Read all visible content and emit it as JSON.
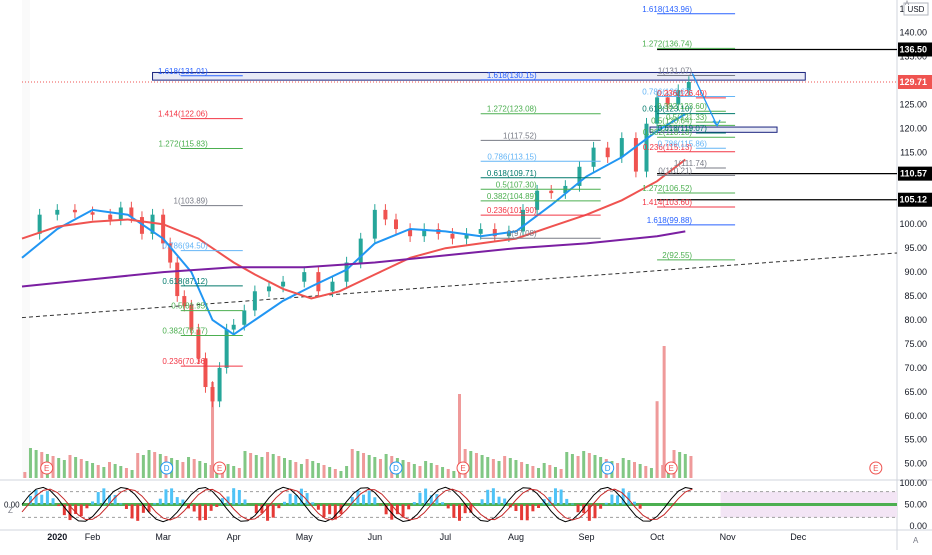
{
  "currency": "USD",
  "chart_data": {
    "type": "candlestick",
    "title": "",
    "price_axis": {
      "ticks": [
        "145.00",
        "140.00",
        "135.00",
        "130.00",
        "125.00",
        "120.00",
        "115.00",
        "110.00",
        "105.00",
        "100.00",
        "95.00",
        "90.00",
        "85.00",
        "80.00",
        "75.00",
        "70.00",
        "65.00",
        "60.00",
        "55.00",
        "50.00"
      ],
      "ylim": [
        47,
        146
      ]
    },
    "oscillator_axis": {
      "ticks": [
        "100.00",
        "50.00",
        "0.00"
      ],
      "left_label": "0.00",
      "ylim": [
        0,
        100
      ]
    },
    "time_axis": {
      "ticks": [
        {
          "label": "2020",
          "t": 0.5
        },
        {
          "label": "Feb",
          "t": 1.0
        },
        {
          "label": "Mar",
          "t": 2.0
        },
        {
          "label": "Apr",
          "t": 3.0
        },
        {
          "label": "May",
          "t": 4.0
        },
        {
          "label": "Jun",
          "t": 5.0
        },
        {
          "label": "Jul",
          "t": 6.0
        },
        {
          "label": "Aug",
          "t": 7.0
        },
        {
          "label": "Sep",
          "t": 8.0
        },
        {
          "label": "Oct",
          "t": 9.0
        },
        {
          "label": "Nov",
          "t": 10.0
        },
        {
          "label": "Dec",
          "t": 11.0
        }
      ],
      "xlim": [
        0,
        12.4
      ]
    },
    "price_tags": [
      {
        "label": "136.50",
        "value": 136.5,
        "color": "#000000"
      },
      {
        "label": "129.71",
        "value": 129.71,
        "color": "#ef5350"
      },
      {
        "label": "110.57",
        "value": 110.57,
        "color": "#000000"
      },
      {
        "label": "105.12",
        "value": 105.12,
        "color": "#000000"
      }
    ],
    "close_series": [
      [
        0.0,
        98.0
      ],
      [
        0.25,
        102.0
      ],
      [
        0.5,
        103.0
      ],
      [
        0.75,
        102.5
      ],
      [
        1.0,
        102.0
      ],
      [
        1.25,
        101.0
      ],
      [
        1.4,
        103.5
      ],
      [
        1.55,
        101.5
      ],
      [
        1.7,
        98.0
      ],
      [
        1.85,
        102.0
      ],
      [
        2.0,
        96.0
      ],
      [
        2.1,
        92.0
      ],
      [
        2.2,
        85.0
      ],
      [
        2.3,
        83.0
      ],
      [
        2.4,
        78.0
      ],
      [
        2.5,
        72.0
      ],
      [
        2.6,
        66.0
      ],
      [
        2.7,
        63.0
      ],
      [
        2.8,
        70.0
      ],
      [
        2.9,
        78.0
      ],
      [
        3.0,
        79.0
      ],
      [
        3.15,
        82.0
      ],
      [
        3.3,
        86.0
      ],
      [
        3.5,
        87.0
      ],
      [
        3.7,
        88.0
      ],
      [
        4.0,
        90.0
      ],
      [
        4.2,
        86.0
      ],
      [
        4.4,
        88.0
      ],
      [
        4.6,
        92.0
      ],
      [
        4.8,
        97.0
      ],
      [
        5.0,
        103.0
      ],
      [
        5.15,
        101.0
      ],
      [
        5.3,
        99.0
      ],
      [
        5.5,
        97.5
      ],
      [
        5.7,
        99.0
      ],
      [
        5.9,
        98.0
      ],
      [
        6.1,
        97.0
      ],
      [
        6.3,
        98.0
      ],
      [
        6.5,
        99.0
      ],
      [
        6.7,
        97.5
      ],
      [
        6.9,
        98.5
      ],
      [
        7.1,
        103.0
      ],
      [
        7.3,
        107.0
      ],
      [
        7.5,
        106.5
      ],
      [
        7.7,
        108.0
      ],
      [
        7.9,
        112.0
      ],
      [
        8.1,
        116.0
      ],
      [
        8.3,
        114.0
      ],
      [
        8.5,
        118.0
      ],
      [
        8.7,
        111.0
      ],
      [
        8.85,
        121.0
      ],
      [
        9.0,
        126.5
      ],
      [
        9.15,
        125.0
      ],
      [
        9.3,
        128.0
      ],
      [
        9.45,
        129.71
      ]
    ],
    "moving_averages": [
      {
        "color": "#2196f3",
        "points": [
          [
            0.0,
            93.0
          ],
          [
            0.5,
            99.0
          ],
          [
            1.0,
            103.0
          ],
          [
            1.5,
            102.0
          ],
          [
            2.0,
            97.0
          ],
          [
            2.4,
            90.0
          ],
          [
            2.7,
            80.0
          ],
          [
            3.0,
            77.0
          ],
          [
            3.3,
            80.0
          ],
          [
            3.7,
            84.0
          ],
          [
            4.1,
            87.0
          ],
          [
            4.6,
            90.5
          ],
          [
            5.0,
            96.0
          ],
          [
            5.5,
            99.0
          ],
          [
            6.0,
            98.5
          ],
          [
            6.5,
            97.5
          ],
          [
            7.0,
            98.5
          ],
          [
            7.5,
            104.0
          ],
          [
            8.0,
            110.0
          ],
          [
            8.5,
            114.0
          ],
          [
            9.0,
            119.5
          ],
          [
            9.4,
            123.0
          ]
        ]
      },
      {
        "color": "#ef5350",
        "points": [
          [
            0.0,
            97.0
          ],
          [
            0.5,
            99.5
          ],
          [
            1.0,
            100.5
          ],
          [
            1.5,
            101.0
          ],
          [
            2.0,
            100.0
          ],
          [
            2.5,
            97.0
          ],
          [
            3.0,
            92.0
          ],
          [
            3.3,
            89.5
          ],
          [
            3.7,
            86.5
          ],
          [
            4.1,
            84.5
          ],
          [
            4.5,
            86.0
          ],
          [
            5.0,
            89.5
          ],
          [
            5.5,
            93.0
          ],
          [
            6.0,
            95.0
          ],
          [
            6.5,
            96.0
          ],
          [
            7.0,
            97.0
          ],
          [
            7.5,
            99.5
          ],
          [
            8.0,
            102.0
          ],
          [
            8.5,
            105.0
          ],
          [
            9.0,
            109.0
          ],
          [
            9.4,
            113.5
          ]
        ]
      },
      {
        "color": "#7b1fa2",
        "points": [
          [
            0.0,
            87.0
          ],
          [
            1.0,
            88.5
          ],
          [
            2.0,
            90.0
          ],
          [
            3.0,
            91.0
          ],
          [
            4.0,
            91.0
          ],
          [
            5.0,
            92.0
          ],
          [
            6.0,
            93.5
          ],
          [
            7.0,
            95.0
          ],
          [
            8.0,
            96.0
          ],
          [
            9.0,
            97.5
          ],
          [
            9.4,
            98.5
          ]
        ]
      }
    ],
    "trendline": {
      "points": [
        [
          0.0,
          80.5
        ],
        [
          12.4,
          94.0
        ]
      ]
    },
    "fib_left": [
      {
        "label": "1.618(131.01)",
        "t": 2.25,
        "value": 131.01,
        "color": "#2962ff"
      },
      {
        "label": "1.414(122.06)",
        "t": 2.25,
        "value": 122.06,
        "color": "#f23645"
      },
      {
        "label": "1.272(115.83)",
        "t": 2.25,
        "value": 115.83,
        "color": "#4caf50"
      },
      {
        "label": "1(103.89)",
        "t": 2.25,
        "value": 103.89,
        "color": "#787b86"
      },
      {
        "label": "0.786(94.50)",
        "t": 2.25,
        "value": 94.5,
        "color": "#64b5f6"
      },
      {
        "label": "0.618(87.12)",
        "t": 2.25,
        "value": 87.12,
        "color": "#00796b"
      },
      {
        "label": "0.5(81.95)",
        "t": 2.25,
        "value": 81.95,
        "color": "#4caf50"
      },
      {
        "label": "0.382(76.77)",
        "t": 2.25,
        "value": 76.77,
        "color": "#4caf50"
      },
      {
        "label": "0.236(70.36)",
        "t": 2.25,
        "value": 70.36,
        "color": "#f23645"
      }
    ],
    "fib_middle": [
      {
        "label": "1.618(130.15)",
        "t": 6.5,
        "value": 130.15,
        "color": "#2962ff"
      },
      {
        "label": "1.272(123.08)",
        "t": 6.5,
        "value": 123.08,
        "color": "#4caf50"
      },
      {
        "label": "1(117.52)",
        "t": 6.5,
        "value": 117.52,
        "color": "#787b86"
      },
      {
        "label": "0.786(113.15)",
        "t": 6.5,
        "value": 113.15,
        "color": "#64b5f6"
      },
      {
        "label": "0.618(109.71)",
        "t": 6.5,
        "value": 109.71,
        "color": "#00796b"
      },
      {
        "label": "0.5(107.30)",
        "t": 6.5,
        "value": 107.3,
        "color": "#4caf50"
      },
      {
        "label": "0.382(104.89)",
        "t": 6.5,
        "value": 104.89,
        "color": "#4caf50"
      },
      {
        "label": "0.236(101.90)",
        "t": 6.5,
        "value": 101.9,
        "color": "#f23645"
      },
      {
        "label": "0(97.08)",
        "t": 6.5,
        "value": 97.08,
        "color": "#787b86"
      }
    ],
    "fib_right": [
      {
        "label": "1.618(143.96)",
        "t": 9.0,
        "value": 143.96,
        "color": "#2962ff"
      },
      {
        "label": "1.272(136.74)",
        "t": 9.0,
        "value": 136.74,
        "color": "#4caf50"
      },
      {
        "label": "1(131.07)",
        "t": 9.0,
        "value": 131.07,
        "color": "#787b86"
      },
      {
        "label": "0.786(126.67)",
        "t": 9.0,
        "value": 126.67,
        "color": "#64b5f6"
      },
      {
        "label": "0.618(123.10)",
        "t": 9.0,
        "value": 123.1,
        "color": "#00796b"
      },
      {
        "label": "0.5(120.64)",
        "t": 9.0,
        "value": 120.64,
        "color": "#4caf50"
      },
      {
        "label": "0.382(118.18)",
        "t": 9.0,
        "value": 118.18,
        "color": "#4caf50"
      },
      {
        "label": "0.236(115.13)",
        "t": 9.0,
        "value": 115.13,
        "color": "#f23645"
      },
      {
        "label": "0(110.21)",
        "t": 9.0,
        "value": 110.21,
        "color": "#787b86"
      },
      {
        "label": "1.272(106.52)",
        "t": 9.0,
        "value": 106.52,
        "color": "#4caf50"
      },
      {
        "label": "1.414(103.60)",
        "t": 9.0,
        "value": 103.6,
        "color": "#f23645"
      },
      {
        "label": "1.618(99.88)",
        "t": 9.0,
        "value": 99.88,
        "color": "#2962ff"
      },
      {
        "label": "2(92.55)",
        "t": 9.0,
        "value": 92.55,
        "color": "#4caf50"
      }
    ],
    "fib_inner": [
      {
        "label": "0.236(126.40)",
        "t": 9.55,
        "value": 126.4,
        "color": "#f23645"
      },
      {
        "label": "0.382(123.60)",
        "t": 9.55,
        "value": 123.6,
        "color": "#4caf50"
      },
      {
        "label": "0.5(121.33)",
        "t": 9.55,
        "value": 121.33,
        "color": "#4caf50"
      },
      {
        "label": "0.618(119.07)",
        "t": 9.55,
        "value": 119.07,
        "color": "#00796b"
      },
      {
        "label": "0.786(115.86)",
        "t": 9.55,
        "value": 115.86,
        "color": "#64b5f6"
      },
      {
        "label": "1(111.74)",
        "t": 9.55,
        "value": 111.74,
        "color": "#787b86"
      }
    ],
    "event_markers": [
      {
        "label": "E",
        "t": 0.35
      },
      {
        "label": "D",
        "t": 2.05
      },
      {
        "label": "E",
        "t": 2.8
      },
      {
        "label": "D",
        "t": 5.3
      },
      {
        "label": "E",
        "t": 6.25
      },
      {
        "label": "D",
        "t": 8.3
      },
      {
        "label": "E",
        "t": 9.2
      },
      {
        "label": "E",
        "t": 12.1
      }
    ],
    "volume_spikes": [
      {
        "t": 2.7,
        "value": 40
      },
      {
        "t": 6.2,
        "value": 35
      },
      {
        "t": 9.0,
        "value": 32
      },
      {
        "t": 9.1,
        "value": 55
      }
    ],
    "corner_labels": {
      "bottom_left_axis_tag": "Z",
      "top_right_tag": "A",
      "bottom_right_tag": "A"
    }
  }
}
